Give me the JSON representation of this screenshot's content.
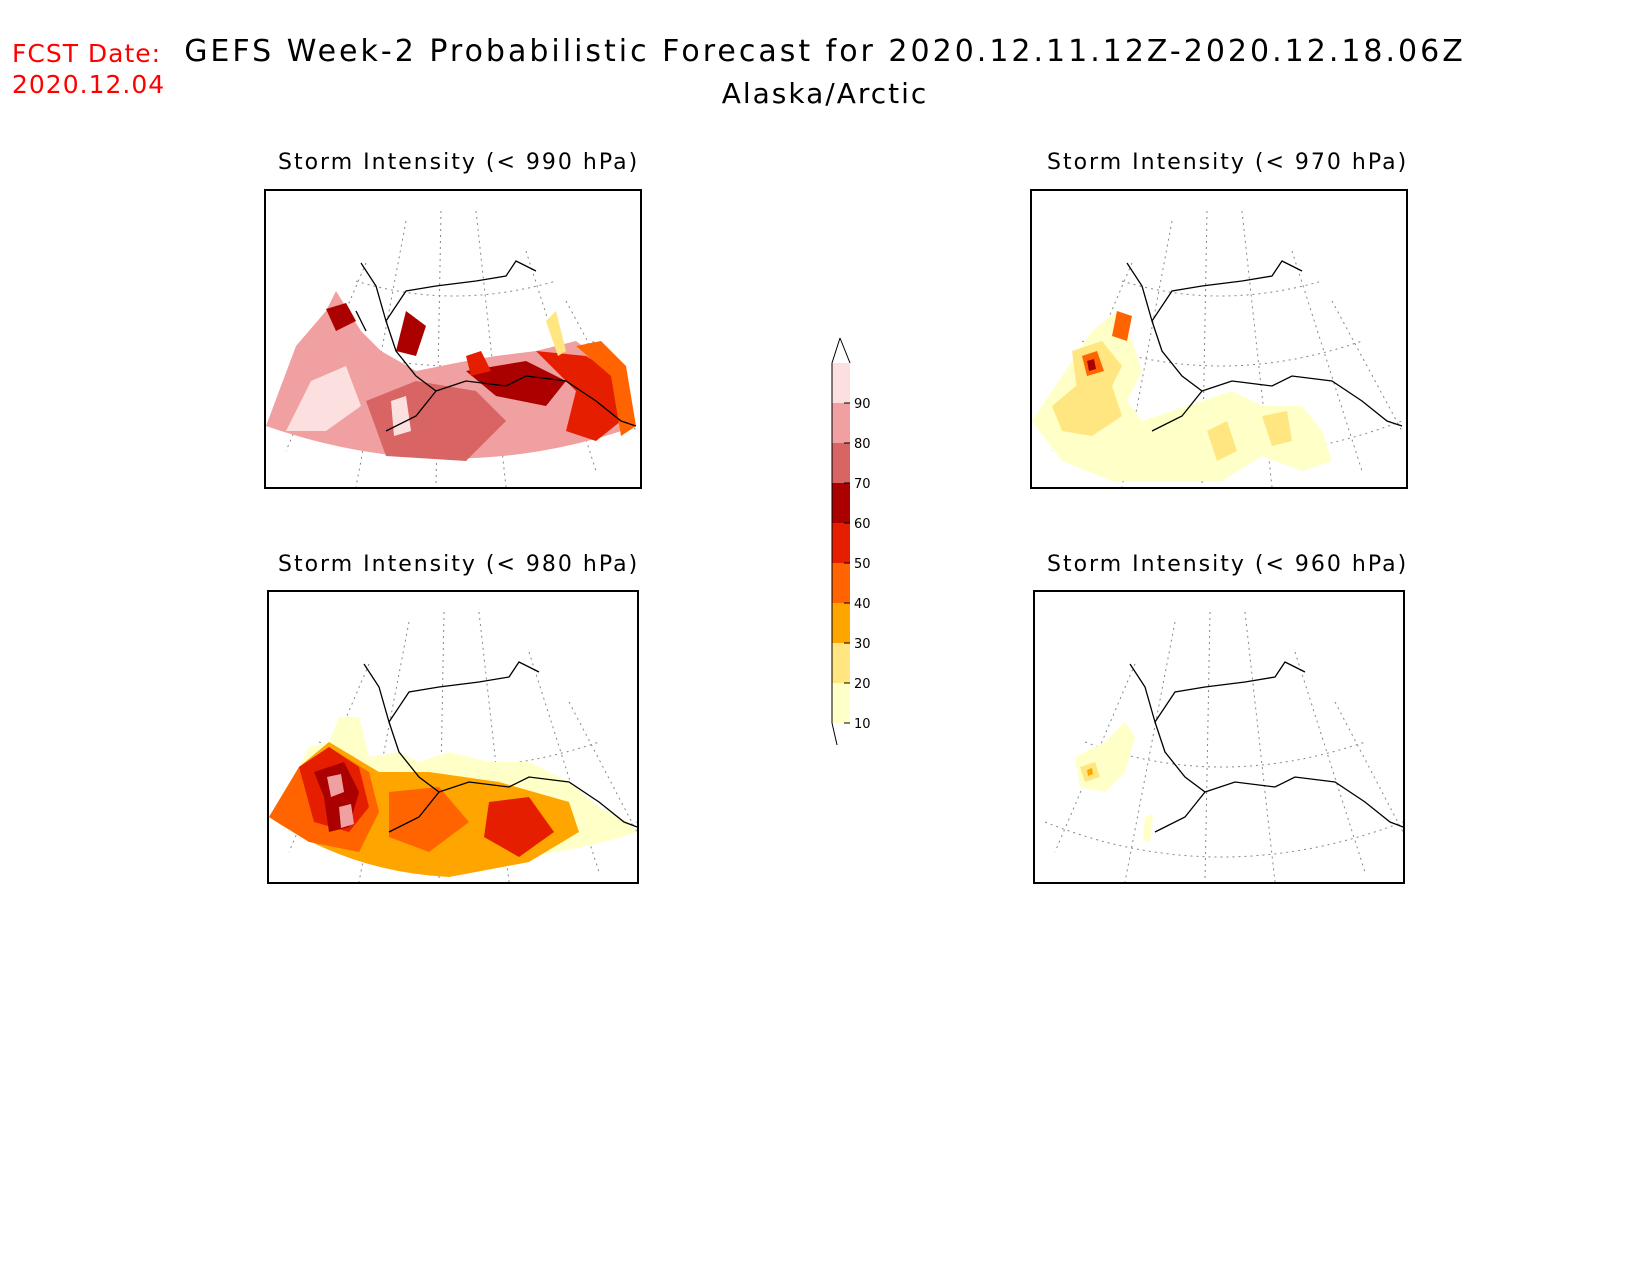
{
  "header": {
    "fcst_label": "FCST Date:",
    "fcst_date": "2020.12.04",
    "title": "GEFS Week-2 Probabilistic Forecast for 2020.12.11.12Z-2020.12.18.06Z",
    "region": "Alaska/Arctic"
  },
  "panels": [
    {
      "id": "p990",
      "title": "Storm Intensity (< 990 hPa)"
    },
    {
      "id": "p970",
      "title": "Storm Intensity (< 970 hPa)"
    },
    {
      "id": "p980",
      "title": "Storm Intensity (< 980 hPa)"
    },
    {
      "id": "p960",
      "title": "Storm Intensity (< 960 hPa)"
    }
  ],
  "colorbar": {
    "levels": [
      "10",
      "20",
      "30",
      "40",
      "50",
      "60",
      "70",
      "80",
      "90"
    ],
    "colors": [
      "#ffffc8",
      "#ffe680",
      "#ffa500",
      "#ff6400",
      "#e61e00",
      "#aa0000",
      "#d86464",
      "#f0a0a0",
      "#fce0e0"
    ]
  }
}
